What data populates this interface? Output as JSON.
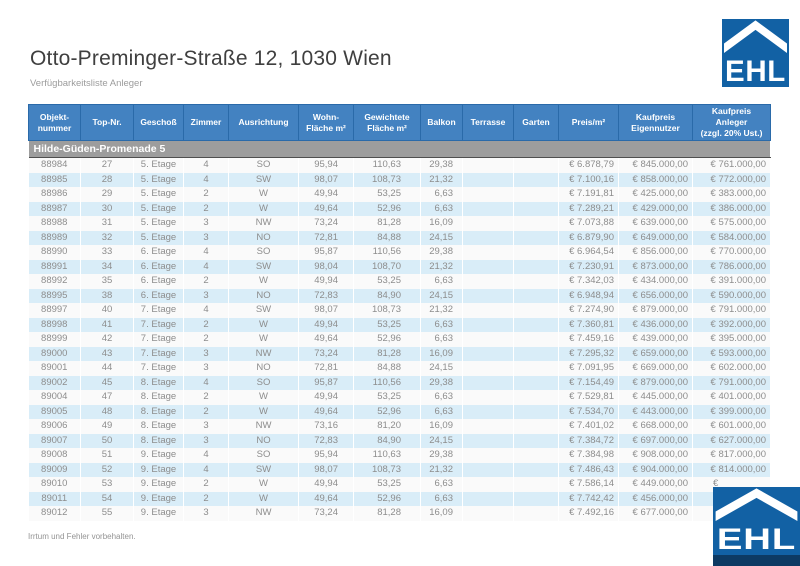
{
  "page": {
    "title": "Otto-Preminger-Straße 12, 1030 Wien",
    "subtitle": "Verfügbarkeitsliste Anleger",
    "footnote": "Irrtum und Fehler vorbehalten."
  },
  "logo": {
    "text": "EHL"
  },
  "colors": {
    "header_bg": "#4382c1",
    "header_divider": "#2a6aa9",
    "section_bg": "#9d9d9d",
    "section_border": "#4f4f4f",
    "row_alt": "#d9edf8",
    "row_base": "#fafafa",
    "cell_text": "#8d8d8d",
    "header_text": "#ffffff",
    "title_text": "#3f3f3f",
    "subtitle_text": "#9c9c9c",
    "logo_blue": "#1261a4",
    "logo_navy": "#0d3a63"
  },
  "table": {
    "section": "Hilde-Güden-Promenade 5",
    "columns": [
      {
        "id": "objektnummer",
        "label": "Objekt-\nnummer"
      },
      {
        "id": "top-nr",
        "label": "Top-Nr."
      },
      {
        "id": "geschoss",
        "label": "Geschoß"
      },
      {
        "id": "zimmer",
        "label": "Zimmer"
      },
      {
        "id": "ausrichtung",
        "label": "Ausrichtung"
      },
      {
        "id": "wohnflaeche",
        "label": "Wohn-\nFläche m²"
      },
      {
        "id": "gewichtete-flaeche",
        "label": "Gewichtete\nFläche m²"
      },
      {
        "id": "balkon",
        "label": "Balkon"
      },
      {
        "id": "terrasse",
        "label": "Terrasse"
      },
      {
        "id": "garten",
        "label": "Garten"
      },
      {
        "id": "preis-m2",
        "label": "Preis/m²"
      },
      {
        "id": "kaufpreis-eigennutzer",
        "label": "Kaufpreis\nEigennutzer"
      },
      {
        "id": "kaufpreis-anleger",
        "label": "Kaufpreis\nAnleger\n(zzgl. 20% Ust.)"
      }
    ],
    "rows": [
      [
        "88984",
        "27",
        "5. Etage",
        "4",
        "SO",
        "95,94",
        "110,63",
        "29,38",
        "",
        "",
        "€ 6.878,79",
        "€ 845.000,00",
        "€ 761.000,00"
      ],
      [
        "88985",
        "28",
        "5. Etage",
        "4",
        "SW",
        "98,07",
        "108,73",
        "21,32",
        "",
        "",
        "€ 7.100,16",
        "€ 858.000,00",
        "€ 772.000,00"
      ],
      [
        "88986",
        "29",
        "5. Etage",
        "2",
        "W",
        "49,94",
        "53,25",
        "6,63",
        "",
        "",
        "€ 7.191,81",
        "€ 425.000,00",
        "€ 383.000,00"
      ],
      [
        "88987",
        "30",
        "5. Etage",
        "2",
        "W",
        "49,64",
        "52,96",
        "6,63",
        "",
        "",
        "€ 7.289,21",
        "€ 429.000,00",
        "€ 386.000,00"
      ],
      [
        "88988",
        "31",
        "5. Etage",
        "3",
        "NW",
        "73,24",
        "81,28",
        "16,09",
        "",
        "",
        "€ 7.073,88",
        "€ 639.000,00",
        "€ 575.000,00"
      ],
      [
        "88989",
        "32",
        "5. Etage",
        "3",
        "NO",
        "72,81",
        "84,88",
        "24,15",
        "",
        "",
        "€ 6.879,90",
        "€ 649.000,00",
        "€ 584.000,00"
      ],
      [
        "88990",
        "33",
        "6. Etage",
        "4",
        "SO",
        "95,87",
        "110,56",
        "29,38",
        "",
        "",
        "€ 6.964,54",
        "€ 856.000,00",
        "€ 770.000,00"
      ],
      [
        "88991",
        "34",
        "6. Etage",
        "4",
        "SW",
        "98,04",
        "108,70",
        "21,32",
        "",
        "",
        "€ 7.230,91",
        "€ 873.000,00",
        "€ 786.000,00"
      ],
      [
        "88992",
        "35",
        "6. Etage",
        "2",
        "W",
        "49,94",
        "53,25",
        "6,63",
        "",
        "",
        "€ 7.342,03",
        "€ 434.000,00",
        "€ 391.000,00"
      ],
      [
        "88995",
        "38",
        "6. Etage",
        "3",
        "NO",
        "72,83",
        "84,90",
        "24,15",
        "",
        "",
        "€ 6.948,94",
        "€ 656.000,00",
        "€ 590.000,00"
      ],
      [
        "88997",
        "40",
        "7. Etage",
        "4",
        "SW",
        "98,07",
        "108,73",
        "21,32",
        "",
        "",
        "€ 7.274,90",
        "€ 879.000,00",
        "€ 791.000,00"
      ],
      [
        "88998",
        "41",
        "7. Etage",
        "2",
        "W",
        "49,94",
        "53,25",
        "6,63",
        "",
        "",
        "€ 7.360,81",
        "€ 436.000,00",
        "€ 392.000,00"
      ],
      [
        "88999",
        "42",
        "7. Etage",
        "2",
        "W",
        "49,64",
        "52,96",
        "6,63",
        "",
        "",
        "€ 7.459,16",
        "€ 439.000,00",
        "€ 395.000,00"
      ],
      [
        "89000",
        "43",
        "7. Etage",
        "3",
        "NW",
        "73,24",
        "81,28",
        "16,09",
        "",
        "",
        "€ 7.295,32",
        "€ 659.000,00",
        "€ 593.000,00"
      ],
      [
        "89001",
        "44",
        "7. Etage",
        "3",
        "NO",
        "72,81",
        "84,88",
        "24,15",
        "",
        "",
        "€ 7.091,95",
        "€ 669.000,00",
        "€ 602.000,00"
      ],
      [
        "89002",
        "45",
        "8. Etage",
        "4",
        "SO",
        "95,87",
        "110,56",
        "29,38",
        "",
        "",
        "€ 7.154,49",
        "€ 879.000,00",
        "€ 791.000,00"
      ],
      [
        "89004",
        "47",
        "8. Etage",
        "2",
        "W",
        "49,94",
        "53,25",
        "6,63",
        "",
        "",
        "€ 7.529,81",
        "€ 445.000,00",
        "€ 401.000,00"
      ],
      [
        "89005",
        "48",
        "8. Etage",
        "2",
        "W",
        "49,64",
        "52,96",
        "6,63",
        "",
        "",
        "€ 7.534,70",
        "€ 443.000,00",
        "€ 399.000,00"
      ],
      [
        "89006",
        "49",
        "8. Etage",
        "3",
        "NW",
        "73,16",
        "81,20",
        "16,09",
        "",
        "",
        "€ 7.401,02",
        "€ 668.000,00",
        "€ 601.000,00"
      ],
      [
        "89007",
        "50",
        "8. Etage",
        "3",
        "NO",
        "72,83",
        "84,90",
        "24,15",
        "",
        "",
        "€ 7.384,72",
        "€ 697.000,00",
        "€ 627.000,00"
      ],
      [
        "89008",
        "51",
        "9. Etage",
        "4",
        "SO",
        "95,94",
        "110,63",
        "29,38",
        "",
        "",
        "€ 7.384,98",
        "€ 908.000,00",
        "€ 817.000,00"
      ],
      [
        "89009",
        "52",
        "9. Etage",
        "4",
        "SW",
        "98,07",
        "108,73",
        "21,32",
        "",
        "",
        "€ 7.486,43",
        "€ 904.000,00",
        "€ 814.000,00"
      ],
      [
        "89010",
        "53",
        "9. Etage",
        "2",
        "W",
        "49,94",
        "53,25",
        "6,63",
        "",
        "",
        "€ 7.586,14",
        "€ 449.000,00",
        "€"
      ],
      [
        "89011",
        "54",
        "9. Etage",
        "2",
        "W",
        "49,64",
        "52,96",
        "6,63",
        "",
        "",
        "€ 7.742,42",
        "€ 456.000,00",
        "€"
      ],
      [
        "89012",
        "55",
        "9. Etage",
        "3",
        "NW",
        "73,24",
        "81,28",
        "16,09",
        "",
        "",
        "€ 7.492,16",
        "€ 677.000,00",
        "€"
      ]
    ]
  }
}
